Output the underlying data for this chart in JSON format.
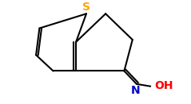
{
  "background": "#ffffff",
  "bond_color": "#000000",
  "S_color": "#ffa500",
  "N_color": "#0000cd",
  "O_color": "#ff0000",
  "font_size": 10,
  "line_width": 1.5,
  "S_label": "S",
  "N_label": "N",
  "OH_label": "OH",
  "xlim": [
    0,
    10
  ],
  "ylim": [
    0,
    6
  ]
}
